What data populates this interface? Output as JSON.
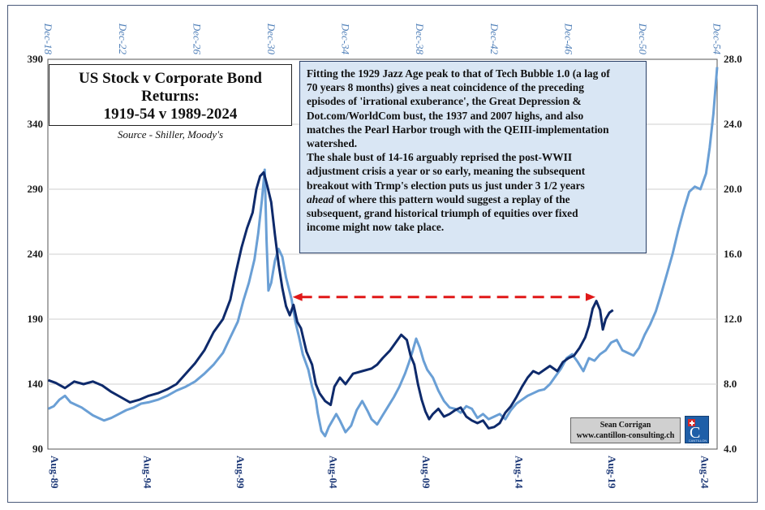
{
  "chart_data": {
    "type": "line",
    "title": "US Stock v Corporate Bond Returns:",
    "title_line2": "1919-54 v 1989-2024",
    "subtitle": "Source - Shiller, Moody's",
    "x_bottom_ticks": [
      "Aug-89",
      "Aug-94",
      "Aug-99",
      "Aug-04",
      "Aug-09",
      "Aug-14",
      "Aug-19",
      "Aug-24"
    ],
    "x_top_ticks": [
      "Dec-18",
      "Dec-22",
      "Dec-26",
      "Dec-30",
      "Dec-34",
      "Dec-38",
      "Dec-42",
      "Dec-46",
      "Dec-50",
      "Dec-54"
    ],
    "xlim": [
      1989.58,
      2025.6
    ],
    "y_left_ticks": [
      "90",
      "140",
      "190",
      "240",
      "290",
      "340",
      "390"
    ],
    "y_left_lim": [
      90,
      390
    ],
    "y_right_ticks": [
      "4.0",
      "8.0",
      "12.0",
      "16.0",
      "20.0",
      "24.0",
      "28.0"
    ],
    "y_right_lim": [
      4.0,
      28.0
    ],
    "grid": "horizontal",
    "series": [
      {
        "axis": "left",
        "color": "#0e2a6b",
        "points": [
          [
            1989.6,
            143
          ],
          [
            1990.0,
            141
          ],
          [
            1990.5,
            137
          ],
          [
            1991.0,
            142
          ],
          [
            1991.5,
            140
          ],
          [
            1992.0,
            142
          ],
          [
            1992.5,
            139
          ],
          [
            1993.0,
            134
          ],
          [
            1993.5,
            130
          ],
          [
            1994.0,
            126
          ],
          [
            1994.5,
            128
          ],
          [
            1995.0,
            131
          ],
          [
            1995.5,
            133
          ],
          [
            1996.0,
            136
          ],
          [
            1996.5,
            140
          ],
          [
            1997.0,
            148
          ],
          [
            1997.5,
            156
          ],
          [
            1998.0,
            166
          ],
          [
            1998.5,
            180
          ],
          [
            1999.0,
            190
          ],
          [
            1999.4,
            205
          ],
          [
            1999.7,
            226
          ],
          [
            2000.0,
            245
          ],
          [
            2000.3,
            260
          ],
          [
            2000.6,
            272
          ],
          [
            2000.8,
            290
          ],
          [
            2001.0,
            300
          ],
          [
            2001.2,
            303
          ],
          [
            2001.4,
            292
          ],
          [
            2001.6,
            280
          ],
          [
            2001.8,
            255
          ],
          [
            2002.0,
            232
          ],
          [
            2002.2,
            214
          ],
          [
            2002.4,
            200
          ],
          [
            2002.6,
            193
          ],
          [
            2002.8,
            201
          ],
          [
            2003.0,
            188
          ],
          [
            2003.2,
            183
          ],
          [
            2003.5,
            165
          ],
          [
            2003.8,
            155
          ],
          [
            2004.0,
            140
          ],
          [
            2004.2,
            133
          ],
          [
            2004.5,
            127
          ],
          [
            2004.8,
            124
          ],
          [
            2005.0,
            138
          ],
          [
            2005.3,
            145
          ],
          [
            2005.6,
            140
          ],
          [
            2006.0,
            148
          ],
          [
            2006.5,
            150
          ],
          [
            2007.0,
            152
          ],
          [
            2007.3,
            155
          ],
          [
            2007.6,
            160
          ],
          [
            2008.0,
            166
          ],
          [
            2008.3,
            172
          ],
          [
            2008.6,
            178
          ],
          [
            2008.9,
            174
          ],
          [
            2009.1,
            162
          ],
          [
            2009.3,
            155
          ],
          [
            2009.5,
            140
          ],
          [
            2009.7,
            128
          ],
          [
            2009.9,
            119
          ],
          [
            2010.1,
            113
          ],
          [
            2010.3,
            117
          ],
          [
            2010.6,
            121
          ],
          [
            2010.9,
            115
          ],
          [
            2011.2,
            117
          ],
          [
            2011.5,
            120
          ],
          [
            2011.8,
            122
          ],
          [
            2012.1,
            115
          ],
          [
            2012.4,
            112
          ],
          [
            2012.7,
            110
          ],
          [
            2013.0,
            112
          ],
          [
            2013.3,
            106
          ],
          [
            2013.6,
            107
          ],
          [
            2013.9,
            110
          ],
          [
            2014.2,
            118
          ],
          [
            2014.5,
            123
          ],
          [
            2014.8,
            130
          ],
          [
            2015.1,
            138
          ],
          [
            2015.4,
            145
          ],
          [
            2015.7,
            150
          ],
          [
            2016.0,
            148
          ],
          [
            2016.3,
            151
          ],
          [
            2016.6,
            154
          ],
          [
            2017.0,
            150
          ],
          [
            2017.3,
            157
          ],
          [
            2017.6,
            160
          ],
          [
            2017.9,
            162
          ],
          [
            2018.2,
            168
          ],
          [
            2018.5,
            176
          ],
          [
            2018.7,
            185
          ],
          [
            2018.9,
            198
          ],
          [
            2019.1,
            204
          ],
          [
            2019.3,
            197
          ],
          [
            2019.45,
            182
          ],
          [
            2019.6,
            190
          ],
          [
            2019.8,
            195
          ],
          [
            2020.0,
            197
          ]
        ]
      },
      {
        "axis": "left",
        "color": "#6a9fd5",
        "points": [
          [
            1989.6,
            121
          ],
          [
            1989.9,
            123
          ],
          [
            1990.2,
            128
          ],
          [
            1990.5,
            131
          ],
          [
            1990.8,
            126
          ],
          [
            1991.1,
            124
          ],
          [
            1991.4,
            122
          ],
          [
            1991.7,
            119
          ],
          [
            1992.0,
            116
          ],
          [
            1992.3,
            114
          ],
          [
            1992.6,
            112
          ],
          [
            1993.0,
            114
          ],
          [
            1993.4,
            117
          ],
          [
            1993.8,
            120
          ],
          [
            1994.2,
            122
          ],
          [
            1994.6,
            125
          ],
          [
            1995.0,
            126
          ],
          [
            1995.5,
            128
          ],
          [
            1996.0,
            131
          ],
          [
            1996.5,
            135
          ],
          [
            1997.0,
            138
          ],
          [
            1997.5,
            142
          ],
          [
            1998.0,
            148
          ],
          [
            1998.5,
            155
          ],
          [
            1999.0,
            164
          ],
          [
            1999.4,
            176
          ],
          [
            1999.8,
            188
          ],
          [
            2000.1,
            204
          ],
          [
            2000.4,
            218
          ],
          [
            2000.7,
            236
          ],
          [
            2000.9,
            256
          ],
          [
            2001.1,
            282
          ],
          [
            2001.25,
            305
          ],
          [
            2001.35,
            250
          ],
          [
            2001.45,
            212
          ],
          [
            2001.6,
            218
          ],
          [
            2001.8,
            235
          ],
          [
            2002.0,
            244
          ],
          [
            2002.2,
            238
          ],
          [
            2002.4,
            222
          ],
          [
            2002.7,
            205
          ],
          [
            2002.9,
            188
          ],
          [
            2003.1,
            176
          ],
          [
            2003.3,
            163
          ],
          [
            2003.6,
            151
          ],
          [
            2003.8,
            138
          ],
          [
            2004.0,
            128
          ],
          [
            2004.1,
            118
          ],
          [
            2004.3,
            104
          ],
          [
            2004.5,
            100
          ],
          [
            2004.7,
            107
          ],
          [
            2004.9,
            112
          ],
          [
            2005.1,
            117
          ],
          [
            2005.3,
            112
          ],
          [
            2005.6,
            103
          ],
          [
            2005.9,
            108
          ],
          [
            2006.2,
            120
          ],
          [
            2006.5,
            127
          ],
          [
            2006.8,
            119
          ],
          [
            2007.0,
            113
          ],
          [
            2007.3,
            109
          ],
          [
            2007.6,
            116
          ],
          [
            2007.9,
            123
          ],
          [
            2008.2,
            130
          ],
          [
            2008.5,
            138
          ],
          [
            2008.8,
            148
          ],
          [
            2009.0,
            156
          ],
          [
            2009.2,
            165
          ],
          [
            2009.4,
            175
          ],
          [
            2009.6,
            168
          ],
          [
            2009.8,
            158
          ],
          [
            2010.0,
            151
          ],
          [
            2010.3,
            145
          ],
          [
            2010.6,
            135
          ],
          [
            2010.9,
            127
          ],
          [
            2011.2,
            122
          ],
          [
            2011.5,
            121
          ],
          [
            2011.8,
            118
          ],
          [
            2012.1,
            123
          ],
          [
            2012.4,
            121
          ],
          [
            2012.7,
            114
          ],
          [
            2013.0,
            117
          ],
          [
            2013.3,
            113
          ],
          [
            2013.6,
            115
          ],
          [
            2013.9,
            117
          ],
          [
            2014.2,
            113
          ],
          [
            2014.5,
            120
          ],
          [
            2014.8,
            125
          ],
          [
            2015.1,
            128
          ],
          [
            2015.4,
            131
          ],
          [
            2015.7,
            133
          ],
          [
            2016.0,
            135
          ],
          [
            2016.3,
            136
          ],
          [
            2016.6,
            140
          ],
          [
            2016.9,
            146
          ],
          [
            2017.2,
            152
          ],
          [
            2017.5,
            160
          ],
          [
            2017.8,
            163
          ],
          [
            2018.1,
            157
          ],
          [
            2018.4,
            150
          ],
          [
            2018.7,
            160
          ],
          [
            2019.0,
            158
          ],
          [
            2019.3,
            163
          ],
          [
            2019.6,
            166
          ],
          [
            2019.9,
            172
          ],
          [
            2020.2,
            174
          ],
          [
            2020.5,
            166
          ],
          [
            2020.8,
            164
          ],
          [
            2021.1,
            162
          ],
          [
            2021.4,
            168
          ],
          [
            2021.7,
            178
          ],
          [
            2022.0,
            186
          ],
          [
            2022.3,
            196
          ],
          [
            2022.6,
            210
          ],
          [
            2022.9,
            225
          ],
          [
            2023.2,
            240
          ],
          [
            2023.5,
            258
          ],
          [
            2023.8,
            274
          ],
          [
            2024.1,
            288
          ],
          [
            2024.4,
            292
          ],
          [
            2024.7,
            290
          ],
          [
            2025.0,
            302
          ],
          [
            2025.2,
            322
          ],
          [
            2025.4,
            348
          ],
          [
            2025.6,
            384
          ]
        ]
      }
    ],
    "arrow": {
      "from_x": 2002.75,
      "to_x": 2019.05,
      "y": 207,
      "color": "#e01818",
      "style": "dashed"
    }
  },
  "note_lines": [
    "Fitting the 1929 Jazz Age peak to that of Tech Bubble 1.0 (a lag of",
    "70 years 8 months) gives a neat coincidence of the preceding",
    "episodes of 'irrational exuberance', the Great Depression &",
    "Dot.com/WorldCom bust, the 1937 and 2007 highs, and also",
    "matches the Pearl Harbor trough with the QEIII-implementation",
    "watershed.",
    "The shale bust of 14-16 arguably reprised the post-WWII",
    "adjustment crisis  a year or so early, meaning the subsequent",
    "breakout with Trmp's election puts us just under 3 1/2 years",
    "of where this pattern would suggest a replay of the",
    "subsequent, grand historical triumph of equities over fixed",
    "income might now take place."
  ],
  "note_italic_word": "ahead",
  "credit": {
    "name": "Sean Corrigan",
    "url": "www.cantillon-consulting.ch"
  },
  "logo_letter": "C",
  "logo_text": "CANTILLON CONSULTING"
}
